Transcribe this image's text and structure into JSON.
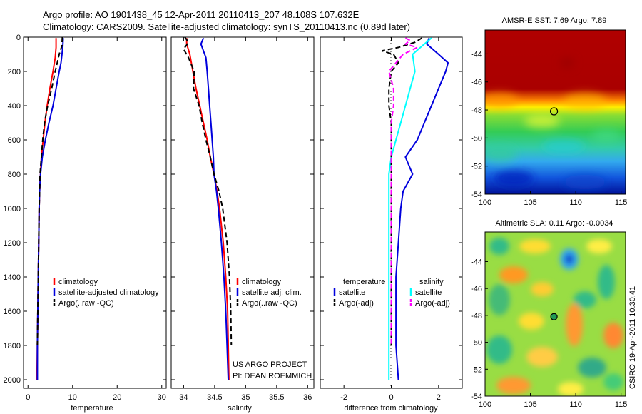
{
  "header": {
    "line1": "Argo profile: AO 1901438_45 12-Apr-2011 20110413_207 48.108S 107.632E",
    "line2": "Climatology: CARS2009. Satellite-adjusted climatology: synTS_20110413.nc (0.89d later)"
  },
  "chart_data": [
    {
      "type": "line",
      "xlabel": "temperature",
      "xlim": [
        -1,
        31
      ],
      "xticks": [
        "0",
        "10",
        "20",
        "30"
      ],
      "xtick_values": [
        0,
        10,
        20,
        30
      ],
      "ylim": [
        2050,
        0
      ],
      "yticks": [
        "0",
        "200",
        "400",
        "600",
        "800",
        "1000",
        "1200",
        "1400",
        "1600",
        "1800",
        "2000"
      ],
      "ytick_values": [
        0,
        200,
        400,
        600,
        800,
        1000,
        1200,
        1400,
        1600,
        1800,
        2000
      ],
      "legend": [
        {
          "label": "climatology",
          "color": "#ff0000",
          "style": "solid"
        },
        {
          "label": "satellite-adjusted climatology",
          "color": "#0000dd",
          "style": "solid"
        },
        {
          "label": "Argo(..raw -QC)",
          "color": "#000000",
          "style": "dashed"
        }
      ],
      "series": [
        {
          "color": "#ff0000",
          "dash": false,
          "points": [
            [
              6.3,
              5
            ],
            [
              6.3,
              60
            ],
            [
              6.1,
              120
            ],
            [
              5.6,
              200
            ],
            [
              4.9,
              300
            ],
            [
              4.3,
              400
            ],
            [
              3.8,
              500
            ],
            [
              3.4,
              600
            ],
            [
              3.0,
              700
            ],
            [
              2.8,
              800
            ],
            [
              2.6,
              900
            ],
            [
              2.5,
              1000
            ],
            [
              2.4,
              1200
            ],
            [
              2.3,
              1400
            ],
            [
              2.2,
              1600
            ],
            [
              2.1,
              1800
            ],
            [
              2.0,
              2000
            ]
          ]
        },
        {
          "color": "#0000dd",
          "dash": false,
          "points": [
            [
              7.9,
              5
            ],
            [
              7.8,
              60
            ],
            [
              7.4,
              150
            ],
            [
              7.0,
              200
            ],
            [
              6.3,
              300
            ],
            [
              5.6,
              400
            ],
            [
              4.7,
              500
            ],
            [
              3.9,
              600
            ],
            [
              3.2,
              700
            ],
            [
              2.8,
              800
            ],
            [
              2.6,
              900
            ],
            [
              2.5,
              1000
            ],
            [
              2.4,
              1200
            ],
            [
              2.3,
              1400
            ],
            [
              2.2,
              1600
            ],
            [
              2.1,
              1800
            ],
            [
              2.1,
              2000
            ]
          ]
        },
        {
          "color": "#000000",
          "dash": true,
          "points": [
            [
              7.7,
              0
            ],
            [
              7.6,
              50
            ],
            [
              7.0,
              100
            ],
            [
              6.1,
              200
            ],
            [
              5.3,
              300
            ],
            [
              4.4,
              400
            ],
            [
              3.7,
              500
            ],
            [
              3.3,
              600
            ],
            [
              3.0,
              700
            ],
            [
              2.7,
              800
            ],
            [
              2.6,
              900
            ],
            [
              2.5,
              1000
            ],
            [
              2.4,
              1200
            ],
            [
              2.3,
              1400
            ],
            [
              2.2,
              1600
            ],
            [
              2.1,
              1800
            ]
          ]
        }
      ]
    },
    {
      "type": "line",
      "xlabel": "salinity",
      "xlim": [
        33.8,
        36.1
      ],
      "xticks": [
        "34",
        "34.5",
        "35",
        "35.5",
        "36"
      ],
      "xtick_values": [
        34,
        34.5,
        35,
        35.5,
        36
      ],
      "ylim": [
        2050,
        0
      ],
      "legend": [
        {
          "label": "climatology",
          "color": "#ff0000",
          "style": "solid"
        },
        {
          "label": "satellite adj. clim.",
          "color": "#0000dd",
          "style": "solid"
        },
        {
          "label": "Argo(..raw -QC)",
          "color": "#000000",
          "style": "dashed"
        }
      ],
      "annotation": [
        "US ARGO PROJECT",
        "PI: DEAN ROEMMICH"
      ],
      "series": [
        {
          "color": "#ff0000",
          "dash": false,
          "points": [
            [
              34.05,
              5
            ],
            [
              34.05,
              40
            ],
            [
              34.1,
              100
            ],
            [
              34.15,
              200
            ],
            [
              34.2,
              300
            ],
            [
              34.26,
              400
            ],
            [
              34.32,
              500
            ],
            [
              34.38,
              600
            ],
            [
              34.43,
              700
            ],
            [
              34.49,
              800
            ],
            [
              34.54,
              900
            ],
            [
              34.58,
              1000
            ],
            [
              34.64,
              1200
            ],
            [
              34.68,
              1400
            ],
            [
              34.71,
              1600
            ],
            [
              34.72,
              1800
            ],
            [
              34.73,
              2000
            ]
          ]
        },
        {
          "color": "#0000dd",
          "dash": false,
          "points": [
            [
              34.32,
              5
            ],
            [
              34.28,
              40
            ],
            [
              34.36,
              120
            ],
            [
              34.38,
              200
            ],
            [
              34.4,
              300
            ],
            [
              34.42,
              400
            ],
            [
              34.44,
              500
            ],
            [
              34.46,
              600
            ],
            [
              34.48,
              700
            ],
            [
              34.49,
              800
            ],
            [
              34.53,
              900
            ],
            [
              34.56,
              1000
            ],
            [
              34.61,
              1200
            ],
            [
              34.65,
              1400
            ],
            [
              34.68,
              1600
            ],
            [
              34.7,
              1800
            ],
            [
              34.72,
              2000
            ]
          ]
        },
        {
          "color": "#000000",
          "dash": true,
          "points": [
            [
              34.02,
              0
            ],
            [
              34.08,
              30
            ],
            [
              34.0,
              70
            ],
            [
              34.08,
              120
            ],
            [
              34.17,
              200
            ],
            [
              34.16,
              300
            ],
            [
              34.25,
              400
            ],
            [
              34.3,
              500
            ],
            [
              34.36,
              600
            ],
            [
              34.43,
              700
            ],
            [
              34.49,
              800
            ],
            [
              34.57,
              900
            ],
            [
              34.63,
              1000
            ],
            [
              34.7,
              1200
            ],
            [
              34.74,
              1400
            ],
            [
              34.76,
              1600
            ],
            [
              34.77,
              1800
            ]
          ]
        }
      ]
    },
    {
      "type": "line",
      "xlabel": "difference from climatology",
      "xlim": [
        -3,
        3
      ],
      "xticks": [
        "-2",
        "0",
        "2"
      ],
      "xtick_values": [
        -2,
        0,
        2
      ],
      "ylim": [
        2050,
        0
      ],
      "legend": [
        {
          "label": "temperature",
          "color": null,
          "style": "header"
        },
        {
          "label": "satellite",
          "color": "#0000dd",
          "style": "solid"
        },
        {
          "label": "Argo(-adj)",
          "color": "#000000",
          "style": "dashed"
        },
        {
          "label": "salinity",
          "color": null,
          "style": "header"
        },
        {
          "label": "satellite",
          "color": "#00ffff",
          "style": "solid"
        },
        {
          "label": "Argo(-adj)",
          "color": "#ff00ff",
          "style": "dashed"
        }
      ],
      "series": [
        {
          "color": "#0000dd",
          "dash": false,
          "points": [
            [
              1.6,
              5
            ],
            [
              1.5,
              40
            ],
            [
              2.0,
              100
            ],
            [
              2.4,
              150
            ],
            [
              2.3,
              200
            ],
            [
              2.0,
              300
            ],
            [
              1.7,
              400
            ],
            [
              1.4,
              500
            ],
            [
              1.1,
              600
            ],
            [
              0.6,
              700
            ],
            [
              0.9,
              800
            ],
            [
              0.5,
              900
            ],
            [
              0.4,
              1000
            ],
            [
              0.3,
              1200
            ],
            [
              0.2,
              1400
            ],
            [
              0.2,
              1600
            ],
            [
              0.2,
              1800
            ],
            [
              0.3,
              2000
            ]
          ]
        },
        {
          "color": "#00ffff",
          "dash": false,
          "points": [
            [
              1.7,
              5
            ],
            [
              1.4,
              40
            ],
            [
              0.9,
              100
            ],
            [
              1.0,
              200
            ],
            [
              0.8,
              300
            ],
            [
              0.6,
              400
            ],
            [
              0.4,
              500
            ],
            [
              0.2,
              600
            ],
            [
              0.0,
              700
            ],
            [
              -0.1,
              800
            ],
            [
              -0.1,
              900
            ],
            [
              -0.1,
              1000
            ],
            [
              -0.1,
              1200
            ],
            [
              -0.1,
              1400
            ],
            [
              -0.1,
              1600
            ],
            [
              -0.1,
              1800
            ],
            [
              -0.1,
              2000
            ]
          ]
        },
        {
          "color": "#000000",
          "dash": true,
          "points": [
            [
              1.3,
              5
            ],
            [
              1.0,
              30
            ],
            [
              0.3,
              60
            ],
            [
              -0.4,
              80
            ],
            [
              0.1,
              100
            ],
            [
              0.3,
              150
            ],
            [
              0.0,
              200
            ],
            [
              -0.1,
              300
            ],
            [
              -0.1,
              400
            ],
            [
              0.0,
              500
            ],
            [
              0.0,
              600
            ],
            [
              0.0,
              800
            ],
            [
              0.0,
              1000
            ],
            [
              0.0,
              1200
            ],
            [
              0.0,
              1400
            ],
            [
              0.0,
              1600
            ],
            [
              0.0,
              1800
            ]
          ]
        },
        {
          "color": "#ff00ff",
          "dash": true,
          "points": [
            [
              0.6,
              5
            ],
            [
              0.8,
              20
            ],
            [
              0.6,
              40
            ],
            [
              1.1,
              60
            ],
            [
              0.5,
              100
            ],
            [
              -0.1,
              200
            ],
            [
              0.1,
              300
            ],
            [
              0.1,
              400
            ],
            [
              0.0,
              500
            ],
            [
              0.0,
              600
            ],
            [
              0.0,
              800
            ],
            [
              0.0,
              1000
            ],
            [
              0.0,
              1200
            ],
            [
              0.0,
              1400
            ],
            [
              0.0,
              1600
            ],
            [
              0.0,
              1800
            ]
          ]
        }
      ]
    },
    {
      "type": "heatmap",
      "title": "AMSR-E SST: 7.69 Argo: 7.89",
      "xlim": [
        100,
        115.5
      ],
      "ylim": [
        -54,
        -42.3
      ],
      "xticks": [
        "100",
        "105",
        "110",
        "115"
      ],
      "xtick_values": [
        100,
        105,
        110,
        115
      ],
      "yticks": [
        "-44",
        "-46",
        "-48",
        "-50",
        "-52",
        "-54"
      ],
      "ytick_values": [
        -44,
        -46,
        -48,
        -50,
        -52,
        -54
      ],
      "marker": [
        107.6,
        -48.1
      ]
    },
    {
      "type": "heatmap",
      "title": "Altimetric SLA: 0.11 Argo: -0.0034",
      "xlim": [
        100,
        115.5
      ],
      "ylim": [
        -54,
        -41.8
      ],
      "xticks": [
        "100",
        "105",
        "110",
        "115"
      ],
      "xtick_values": [
        100,
        105,
        110,
        115
      ],
      "yticks": [
        "-44",
        "-46",
        "-48",
        "-50",
        "-52",
        "-54"
      ],
      "ytick_values": [
        -44,
        -46,
        -48,
        -50,
        -52,
        -54
      ],
      "marker": [
        107.6,
        -48.1
      ],
      "side_label": "CSIRO 19-Apr-2011 10:30:41"
    }
  ]
}
